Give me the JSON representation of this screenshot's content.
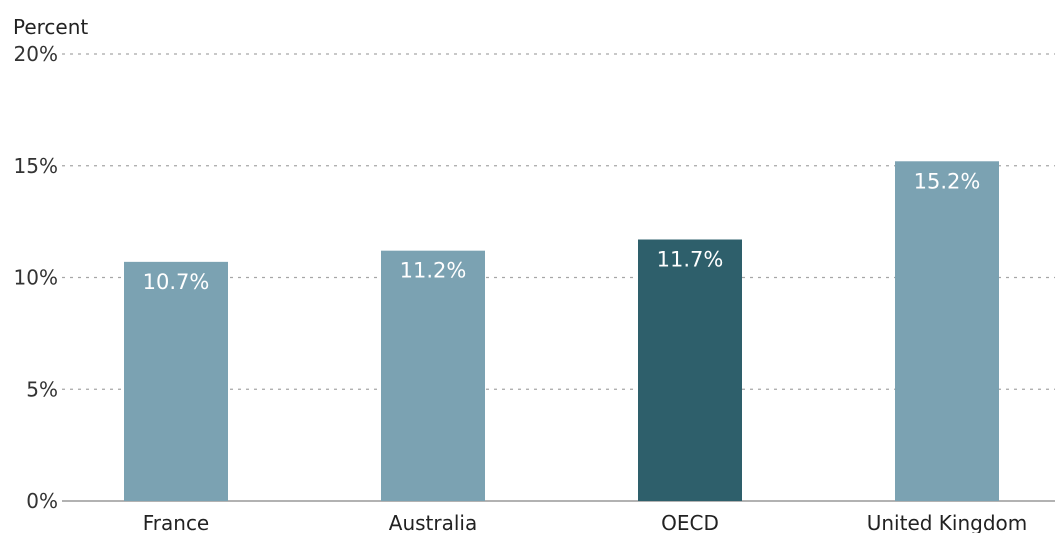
{
  "chart_data": {
    "type": "bar",
    "title": "",
    "xlabel": "",
    "ylabel": "Percent",
    "categories": [
      "France",
      "Australia",
      "OECD",
      "United Kingdom"
    ],
    "values": [
      10.7,
      11.2,
      11.7,
      15.2
    ],
    "data_labels": [
      "10.7%",
      "11.2%",
      "11.7%",
      "15.2%"
    ],
    "ylim": [
      0,
      20
    ],
    "yticks": [
      0,
      5,
      10,
      15,
      20
    ],
    "ytick_labels": [
      "0%",
      "5%",
      "10%",
      "15%",
      "20%"
    ],
    "grid": true,
    "legend": "none",
    "colors": {
      "default_bar": "#7ba2b2",
      "highlight_bar": "#2e5f6b",
      "highlight_category": "OECD"
    }
  }
}
